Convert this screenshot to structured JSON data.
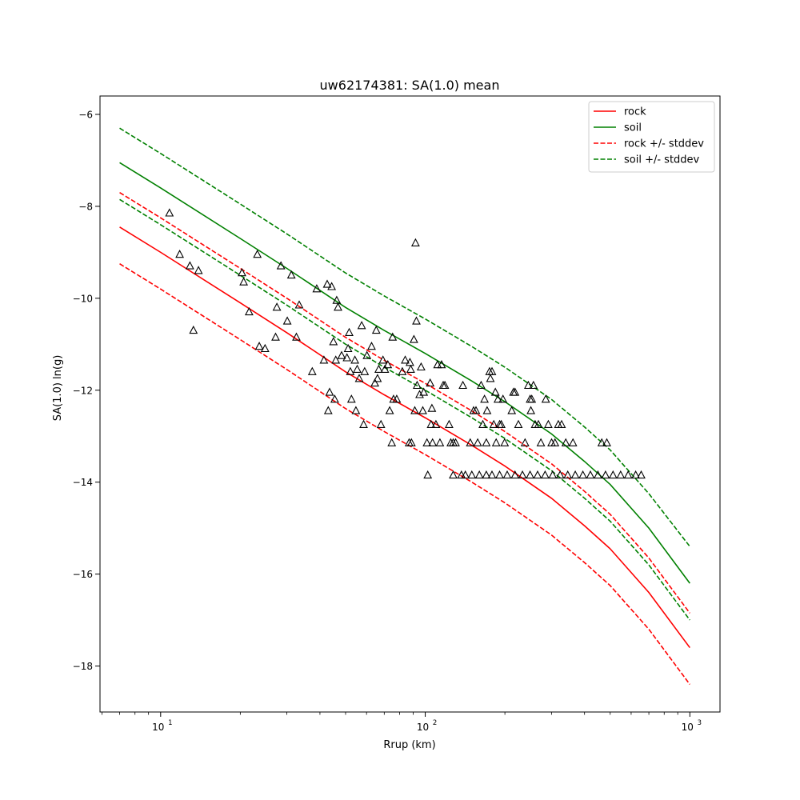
{
  "chart_data": {
    "type": "scatter",
    "title": "uw62174381: SA(1.0) mean",
    "xlabel": "Rrup (km)",
    "ylabel": "SA(1.0) ln(g)",
    "xscale": "log",
    "xlim": [
      5.9,
      1300
    ],
    "ylim": [
      -19.0,
      -5.6
    ],
    "grid": false,
    "legend_position": "top-right",
    "x_ticks": [
      {
        "value": 10,
        "base": "10",
        "exp": "1"
      },
      {
        "value": 100,
        "base": "10",
        "exp": "2"
      },
      {
        "value": 1000,
        "base": "10",
        "exp": "3"
      }
    ],
    "y_ticks": [
      {
        "value": -6,
        "label": "−6"
      },
      {
        "value": -8,
        "label": "−8"
      },
      {
        "value": -10,
        "label": "−10"
      },
      {
        "value": -12,
        "label": "−12"
      },
      {
        "value": -14,
        "label": "−14"
      },
      {
        "value": -16,
        "label": "−16"
      },
      {
        "value": -18,
        "label": "−18"
      }
    ],
    "colors": {
      "rock": "#ff0000",
      "soil": "#008000",
      "points": "#000000"
    },
    "legend": [
      {
        "label": "rock",
        "color": "#ff0000",
        "dashed": false
      },
      {
        "label": "soil",
        "color": "#008000",
        "dashed": false
      },
      {
        "label": "rock +/- stddev",
        "color": "#ff0000",
        "dashed": true
      },
      {
        "label": "soil +/- stddev",
        "color": "#008000",
        "dashed": true
      }
    ],
    "curve_x": [
      7,
      10,
      20,
      30,
      50,
      70,
      100,
      150,
      200,
      300,
      400,
      500,
      700,
      1000
    ],
    "series": [
      {
        "name": "rock",
        "color": "#ff0000",
        "dashed": false,
        "y": [
          -8.45,
          -9.0,
          -10.1,
          -10.75,
          -11.6,
          -12.1,
          -12.6,
          -13.2,
          -13.65,
          -14.35,
          -14.95,
          -15.45,
          -16.4,
          -17.6
        ]
      },
      {
        "name": "rock +/- stddev",
        "color": "#ff0000",
        "dashed": true,
        "y": [
          -7.7,
          -8.25,
          -9.35,
          -10.0,
          -10.85,
          -11.35,
          -11.85,
          -12.45,
          -12.9,
          -13.6,
          -14.2,
          -14.7,
          -15.65,
          -16.85
        ]
      },
      {
        "name": "rock +/- stddev",
        "color": "#ff0000",
        "dashed": true,
        "y": [
          -9.25,
          -9.8,
          -10.9,
          -11.55,
          -12.4,
          -12.9,
          -13.4,
          -14.0,
          -14.45,
          -15.15,
          -15.75,
          -16.25,
          -17.2,
          -18.4
        ]
      },
      {
        "name": "soil",
        "color": "#008000",
        "dashed": false,
        "y": [
          -7.05,
          -7.6,
          -8.7,
          -9.35,
          -10.2,
          -10.7,
          -11.2,
          -11.8,
          -12.25,
          -12.95,
          -13.55,
          -14.05,
          -15.0,
          -16.2
        ]
      },
      {
        "name": "soil +/- stddev",
        "color": "#008000",
        "dashed": true,
        "y": [
          -6.3,
          -6.85,
          -7.95,
          -8.6,
          -9.45,
          -9.95,
          -10.45,
          -11.05,
          -11.5,
          -12.2,
          -12.8,
          -13.3,
          -14.25,
          -15.4
        ]
      },
      {
        "name": "soil +/- stddev",
        "color": "#008000",
        "dashed": true,
        "y": [
          -7.85,
          -8.4,
          -9.5,
          -10.15,
          -11.0,
          -11.5,
          -12.0,
          -12.6,
          -13.05,
          -13.75,
          -14.35,
          -14.85,
          -15.8,
          -17.0
        ]
      }
    ],
    "points": [
      [
        10.8,
        -8.15
      ],
      [
        11.8,
        -9.05
      ],
      [
        12.9,
        -9.3
      ],
      [
        13.3,
        -10.7
      ],
      [
        13.9,
        -9.4
      ],
      [
        20.3,
        -9.45
      ],
      [
        20.6,
        -9.65
      ],
      [
        21.6,
        -10.3
      ],
      [
        23.2,
        -9.05
      ],
      [
        23.6,
        -11.05
      ],
      [
        24.8,
        -11.1
      ],
      [
        27.2,
        -10.85
      ],
      [
        27.5,
        -10.2
      ],
      [
        28.5,
        -9.3
      ],
      [
        30.1,
        -10.5
      ],
      [
        31.2,
        -9.5
      ],
      [
        32.6,
        -10.85
      ],
      [
        33.4,
        -10.15
      ],
      [
        37.4,
        -11.6
      ],
      [
        38.9,
        -9.8
      ],
      [
        41.4,
        -11.35
      ],
      [
        42.6,
        -9.7
      ],
      [
        43.0,
        -12.45
      ],
      [
        43.5,
        -12.05
      ],
      [
        44.3,
        -9.75
      ],
      [
        45.0,
        -10.95
      ],
      [
        45.5,
        -12.2
      ],
      [
        45.9,
        -11.35
      ],
      [
        46.3,
        -10.05
      ],
      [
        46.8,
        -10.2
      ],
      [
        48.3,
        -11.25
      ],
      [
        50.6,
        -11.3
      ],
      [
        51.1,
        -11.1
      ],
      [
        51.6,
        -10.75
      ],
      [
        52.1,
        -11.6
      ],
      [
        52.6,
        -12.2
      ],
      [
        54.2,
        -11.35
      ],
      [
        54.7,
        -12.45
      ],
      [
        55.3,
        -11.55
      ],
      [
        56.3,
        -11.75
      ],
      [
        57.5,
        -10.6
      ],
      [
        58.5,
        -12.75
      ],
      [
        59.0,
        -11.6
      ],
      [
        60.2,
        -11.25
      ],
      [
        62.7,
        -11.05
      ],
      [
        64.5,
        -11.85
      ],
      [
        65.3,
        -10.7
      ],
      [
        66.0,
        -11.75
      ],
      [
        66.7,
        -11.55
      ],
      [
        68.0,
        -12.75
      ],
      [
        69.2,
        -11.35
      ],
      [
        70.4,
        -11.55
      ],
      [
        72.2,
        -11.45
      ],
      [
        73.4,
        -12.45
      ],
      [
        74.7,
        -13.15
      ],
      [
        75.3,
        -10.85
      ],
      [
        75.9,
        -12.2
      ],
      [
        78.0,
        -12.2
      ],
      [
        81.9,
        -11.6
      ],
      [
        84.0,
        -11.35
      ],
      [
        86.9,
        -13.15
      ],
      [
        87.5,
        -11.4
      ],
      [
        88.1,
        -11.55
      ],
      [
        88.7,
        -13.15
      ],
      [
        90.6,
        -10.9
      ],
      [
        91.3,
        -12.45
      ],
      [
        91.9,
        -8.8
      ],
      [
        92.6,
        -10.5
      ],
      [
        93.2,
        -11.9
      ],
      [
        95.2,
        -12.1
      ],
      [
        96.5,
        -11.5
      ],
      [
        97.9,
        -12.45
      ],
      [
        98.7,
        -12.05
      ],
      [
        101.5,
        -13.15
      ],
      [
        102.2,
        -13.85
      ],
      [
        104.4,
        -11.85
      ],
      [
        105.2,
        -12.75
      ],
      [
        106.0,
        -12.4
      ],
      [
        106.6,
        -13.15
      ],
      [
        109.7,
        -12.75
      ],
      [
        111.3,
        -11.45
      ],
      [
        113.6,
        -13.15
      ],
      [
        115.3,
        -11.45
      ],
      [
        116.9,
        -11.9
      ],
      [
        118.6,
        -11.9
      ],
      [
        123.1,
        -12.75
      ],
      [
        124.9,
        -13.15
      ],
      [
        127.5,
        -13.15
      ],
      [
        130.2,
        -13.15
      ],
      [
        138.8,
        -11.9
      ],
      [
        141.8,
        -13.85
      ],
      [
        147.9,
        -13.15
      ],
      [
        152.3,
        -12.45
      ],
      [
        155.5,
        -12.45
      ],
      [
        157.8,
        -13.15
      ],
      [
        162.6,
        -11.9
      ],
      [
        165.0,
        -12.75
      ],
      [
        167.5,
        -12.2
      ],
      [
        170.1,
        -13.15
      ],
      [
        171.3,
        -12.45
      ],
      [
        175.0,
        -11.6
      ],
      [
        176.3,
        -11.75
      ],
      [
        178.8,
        -11.6
      ],
      [
        181.5,
        -12.75
      ],
      [
        184.1,
        -12.05
      ],
      [
        185.4,
        -13.15
      ],
      [
        188.2,
        -12.2
      ],
      [
        191.0,
        -12.75
      ],
      [
        193.8,
        -12.75
      ],
      [
        196.7,
        -12.2
      ],
      [
        199.6,
        -13.15
      ],
      [
        212.3,
        -12.45
      ],
      [
        215.4,
        -12.05
      ],
      [
        218.5,
        -12.05
      ],
      [
        224.9,
        -12.75
      ],
      [
        238.3,
        -13.15
      ],
      [
        245.3,
        -11.9
      ],
      [
        249.0,
        -12.2
      ],
      [
        250.8,
        -12.45
      ],
      [
        252.6,
        -12.2
      ],
      [
        256.3,
        -11.9
      ],
      [
        260.1,
        -12.75
      ],
      [
        267.7,
        -12.75
      ],
      [
        273.5,
        -13.15
      ],
      [
        285.4,
        -12.2
      ],
      [
        291.8,
        -12.75
      ],
      [
        300.3,
        -13.15
      ],
      [
        309.2,
        -13.15
      ],
      [
        318.3,
        -12.75
      ],
      [
        327.6,
        -12.75
      ],
      [
        339.6,
        -13.15
      ],
      [
        361.5,
        -13.15
      ],
      [
        464.7,
        -13.15
      ],
      [
        485.4,
        -13.15
      ],
      [
        127.5,
        -13.85
      ],
      [
        137.0,
        -13.85
      ],
      [
        150.0,
        -13.85
      ],
      [
        160.2,
        -13.85
      ],
      [
        170.1,
        -13.85
      ],
      [
        178.8,
        -13.85
      ],
      [
        191.0,
        -13.85
      ],
      [
        204.0,
        -13.85
      ],
      [
        218.5,
        -13.85
      ],
      [
        233.0,
        -13.85
      ],
      [
        249.0,
        -13.85
      ],
      [
        265.8,
        -13.85
      ],
      [
        283.8,
        -13.85
      ],
      [
        303.0,
        -13.85
      ],
      [
        323.6,
        -13.85
      ],
      [
        345.6,
        -13.85
      ],
      [
        369.0,
        -13.85
      ],
      [
        394.1,
        -13.85
      ],
      [
        421.0,
        -13.85
      ],
      [
        449.4,
        -13.85
      ],
      [
        480.0,
        -13.85
      ],
      [
        512.7,
        -13.85
      ],
      [
        547.5,
        -13.85
      ],
      [
        584.7,
        -13.85
      ],
      [
        624.3,
        -13.85
      ],
      [
        654.9,
        -13.85
      ]
    ]
  }
}
